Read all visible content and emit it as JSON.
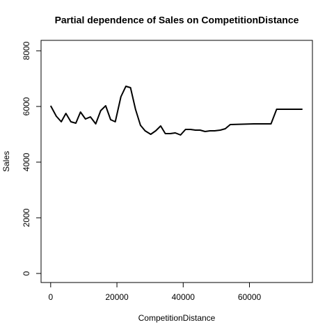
{
  "chart_data": {
    "type": "line",
    "title": "Partial dependence of Sales on CompetitionDistance",
    "xlabel": "CompetitionDistance",
    "ylabel": "Sales",
    "x": [
      0,
      1700,
      3200,
      4600,
      6100,
      7600,
      9000,
      10500,
      12000,
      13600,
      15100,
      16600,
      18100,
      19500,
      21200,
      22700,
      24100,
      25600,
      27100,
      28500,
      30200,
      31700,
      33200,
      34600,
      36100,
      37600,
      39200,
      40700,
      42200,
      43700,
      45100,
      46600,
      48100,
      49500,
      51200,
      52700,
      54200,
      61300,
      66500,
      68200,
      76000
    ],
    "series": [
      {
        "name": "Sales",
        "color": "#000000",
        "values": [
          6025,
          5650,
          5450,
          5750,
          5450,
          5400,
          5800,
          5550,
          5625,
          5375,
          5850,
          6025,
          5525,
          5450,
          6350,
          6725,
          6675,
          5900,
          5325,
          5125,
          5000,
          5125,
          5300,
          5025,
          5025,
          5050,
          4975,
          5175,
          5175,
          5150,
          5150,
          5100,
          5125,
          5125,
          5150,
          5200,
          5350,
          5375,
          5375,
          5900,
          5900
        ]
      }
    ],
    "xlim": [
      -2900,
      79000
    ],
    "xticks": [
      0,
      20000,
      40000,
      60000
    ],
    "ylim": [
      -325,
      8375
    ],
    "yticks": [
      0,
      2000,
      4000,
      6000,
      8000
    ]
  }
}
